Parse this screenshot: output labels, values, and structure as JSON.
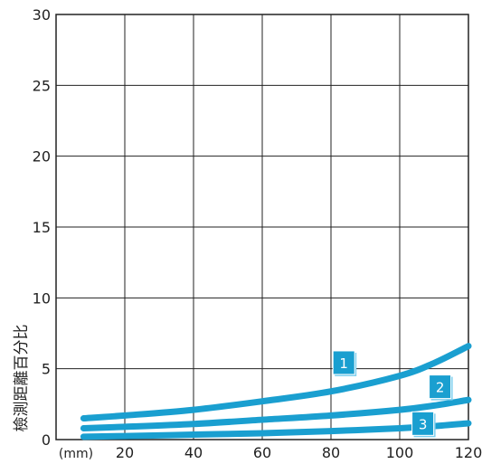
{
  "chart_data": {
    "type": "line",
    "title": "",
    "xlabel": "",
    "ylabel": "檢測距離百分比",
    "x_unit": "(mm)",
    "xlim": [
      0,
      120
    ],
    "ylim": [
      0,
      30
    ],
    "xticks": [
      20,
      40,
      60,
      80,
      100,
      120
    ],
    "yticks": [
      0,
      5,
      10,
      15,
      20,
      25,
      30
    ],
    "grid": true,
    "series_color": "#1a9fd0",
    "series": [
      {
        "name": "1",
        "x": [
          8,
          20,
          40,
          60,
          80,
          100,
          110,
          120
        ],
        "y": [
          1.5,
          1.7,
          2.1,
          2.7,
          3.4,
          4.5,
          5.4,
          6.6
        ]
      },
      {
        "name": "2",
        "x": [
          8,
          20,
          40,
          60,
          80,
          100,
          110,
          120
        ],
        "y": [
          0.8,
          0.9,
          1.1,
          1.4,
          1.7,
          2.1,
          2.4,
          2.8
        ]
      },
      {
        "name": "3",
        "x": [
          8,
          20,
          40,
          60,
          80,
          100,
          110,
          120
        ],
        "y": [
          0.2,
          0.25,
          0.35,
          0.45,
          0.6,
          0.8,
          0.95,
          1.15
        ]
      }
    ],
    "labels": [
      {
        "text": "1",
        "x": 84,
        "y": 5.3
      },
      {
        "text": "2",
        "x": 112,
        "y": 3.6
      },
      {
        "text": "3",
        "x": 107,
        "y": 1.0
      }
    ]
  }
}
